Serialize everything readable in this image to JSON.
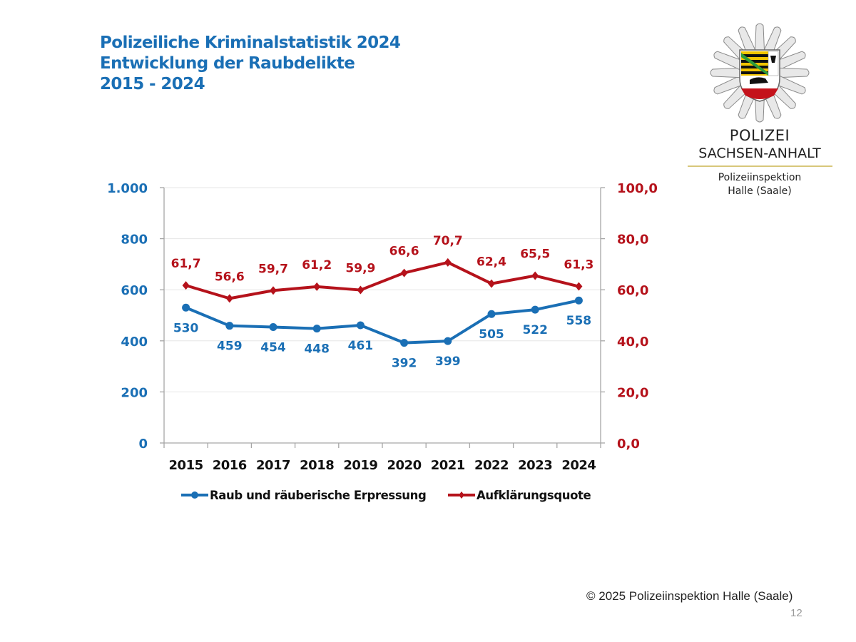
{
  "header": {
    "title_line1": "Polizeiliche Kriminalstatistik 2024",
    "title_line2": "Entwicklung der Raubdelikte",
    "title_line3": "2015 - 2024"
  },
  "logo": {
    "line1": "POLIZEI",
    "line2": "SACHSEN-ANHALT",
    "sub1": "Polizeiinspektion",
    "sub2": "Halle (Saale)",
    "icon": "police-star-badge-icon"
  },
  "footer": {
    "copyright": "© 2025 Polizeiinspektion Halle (Saale)",
    "page_number": "12"
  },
  "colors": {
    "title": "#1a6fb5",
    "series_blue": "#1a6fb5",
    "series_red": "#b5121b",
    "grid": "#e6e6e6",
    "axis": "#a6a6a6"
  },
  "chart_data": {
    "type": "line",
    "title": "Entwicklung der Raubdelikte 2015 - 2024",
    "xlabel": "",
    "ylabel": "",
    "categories": [
      "2015",
      "2016",
      "2017",
      "2018",
      "2019",
      "2020",
      "2021",
      "2022",
      "2023",
      "2024"
    ],
    "series": [
      {
        "name": "Raub und räuberische Erpressung",
        "axis": "left",
        "color": "#1a6fb5",
        "marker": "circle",
        "values": [
          530,
          459,
          454,
          448,
          461,
          392,
          399,
          505,
          522,
          558
        ],
        "labels": [
          "530",
          "459",
          "454",
          "448",
          "461",
          "392",
          "399",
          "505",
          "522",
          "558"
        ]
      },
      {
        "name": "Aufklärungsquote",
        "axis": "right",
        "color": "#b5121b",
        "marker": "diamond",
        "values": [
          61.7,
          56.6,
          59.7,
          61.2,
          59.9,
          66.6,
          70.7,
          62.4,
          65.5,
          61.3
        ],
        "labels": [
          "61,7",
          "56,6",
          "59,7",
          "61,2",
          "59,9",
          "66,6",
          "70,7",
          "62,4",
          "65,5",
          "61,3"
        ]
      }
    ],
    "y_left": {
      "range": [
        0,
        1000
      ],
      "ticks": [
        0,
        200,
        400,
        600,
        800,
        1000
      ],
      "tick_labels": [
        "0",
        "200",
        "400",
        "600",
        "800",
        "1.000"
      ]
    },
    "y_right": {
      "range": [
        0,
        100
      ],
      "ticks": [
        0,
        20,
        40,
        60,
        80,
        100
      ],
      "tick_labels": [
        "0,0",
        "20,0",
        "40,0",
        "60,0",
        "80,0",
        "100,0"
      ]
    },
    "grid": true,
    "legend_position": "bottom"
  }
}
